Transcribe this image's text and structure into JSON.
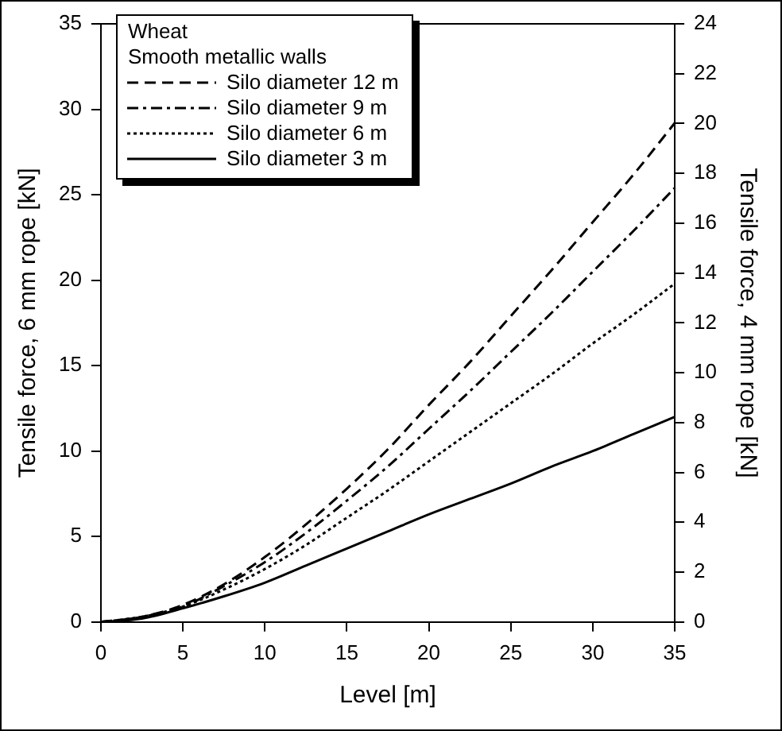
{
  "chart_data": {
    "type": "line",
    "xlabel": "Level [m]",
    "ylabel": "Tensile force, 6 mm rope [kN]",
    "y2label": "Tensile force, 4 mm rope [kN]",
    "legend_title": "Wheat\nSmooth metallic walls",
    "legend": "top left",
    "marker": "none",
    "x": [
      0,
      2.5,
      5,
      7.5,
      10,
      12.5,
      15,
      17.5,
      20,
      22.5,
      25,
      27.5,
      30,
      32.5,
      35
    ],
    "series": [
      {
        "name": "Silo diameter 12 m",
        "color": "#000000",
        "line_style": "dashed",
        "values": [
          0,
          0.3,
          1.0,
          2.2,
          3.8,
          5.7,
          7.8,
          10.1,
          12.7,
          15.2,
          17.9,
          20.6,
          23.4,
          26.2,
          29.2
        ]
      },
      {
        "name": "Silo diameter 9 m",
        "color": "#000000",
        "line_style": "dashdot",
        "values": [
          0,
          0.3,
          0.9,
          2.1,
          3.5,
          5.2,
          7.1,
          9.1,
          11.3,
          13.5,
          15.8,
          18.1,
          20.5,
          22.9,
          25.4
        ]
      },
      {
        "name": "Silo diameter 6 m",
        "color": "#000000",
        "line_style": "dotted",
        "values": [
          0,
          0.3,
          0.9,
          1.9,
          3.1,
          4.5,
          6.1,
          7.7,
          9.4,
          11.1,
          12.8,
          14.5,
          16.3,
          18.0,
          19.8
        ]
      },
      {
        "name": "Silo diameter 3 m",
        "color": "#000000",
        "line_style": "solid",
        "values": [
          0,
          0.2,
          0.8,
          1.5,
          2.3,
          3.3,
          4.3,
          5.3,
          6.3,
          7.2,
          8.1,
          9.1,
          10.0,
          11.0,
          12.0
        ]
      }
    ],
    "xlim": [
      0,
      35
    ],
    "xticks": [
      0,
      5,
      10,
      15,
      20,
      25,
      30,
      35
    ],
    "ylim": [
      0,
      35
    ],
    "yticks": [
      0,
      5,
      10,
      15,
      20,
      25,
      30,
      35
    ],
    "y2lim": [
      0,
      24
    ],
    "y2ticks": [
      0,
      2,
      4,
      6,
      8,
      10,
      12,
      14,
      16,
      18,
      20,
      22,
      24
    ]
  }
}
